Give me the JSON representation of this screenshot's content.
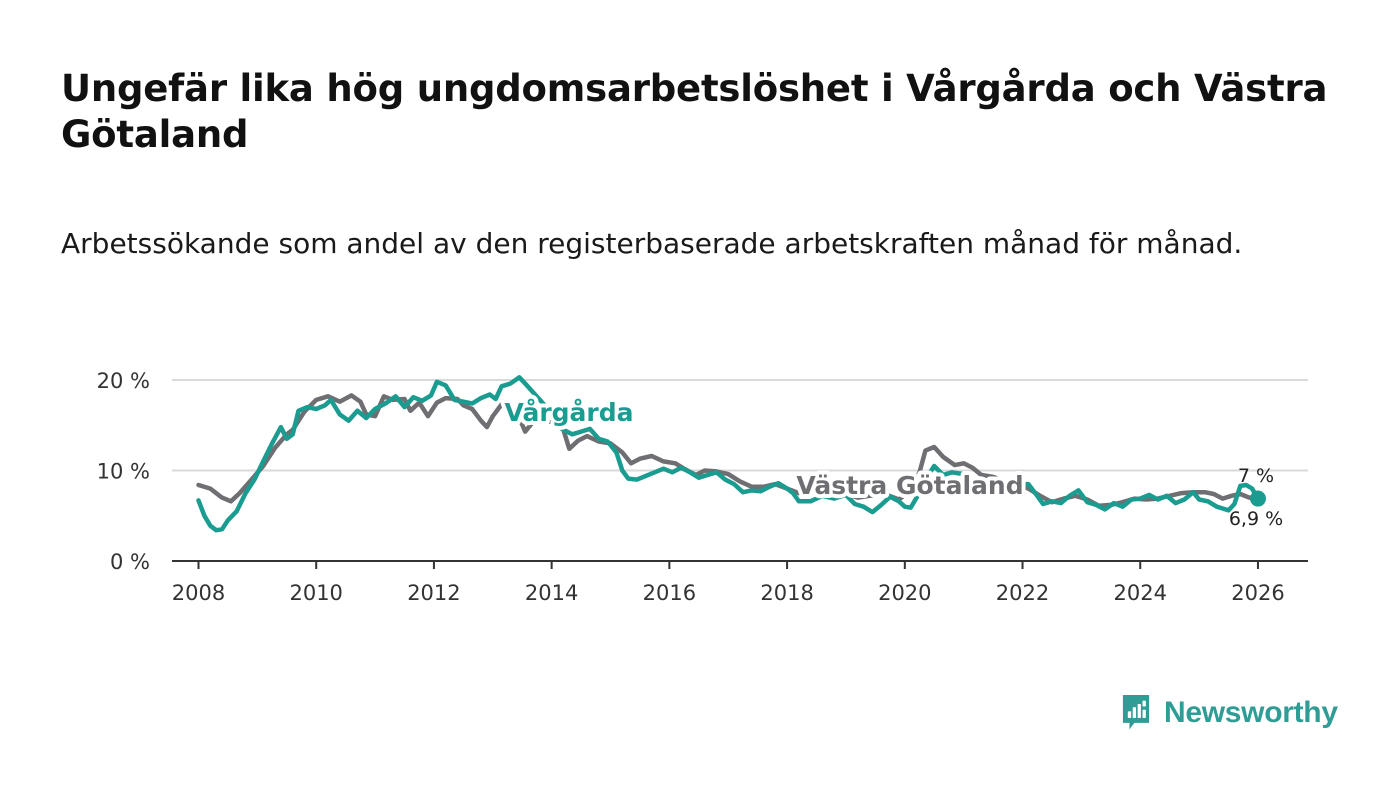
{
  "title": "Ungefär lika hög ungdomsarbetslöshet i Vårgårda och Västra Götaland",
  "subtitle": "Arbetssökande som andel av den registerbaserade arbetskraften månad för månad.",
  "brand": {
    "name": "Newsworthy",
    "color": "#2f9d96"
  },
  "chart_data": {
    "type": "line",
    "title": "Ungefär lika hög ungdomsarbetslöshet i Vårgårda och Västra Götaland",
    "xlabel": "",
    "ylabel": "",
    "xlim": [
      2007.55,
      2026.85
    ],
    "ylim": [
      0,
      20
    ],
    "x_ticks": [
      2008,
      2010,
      2012,
      2014,
      2016,
      2018,
      2020,
      2022,
      2024,
      2026
    ],
    "x_tick_labels": [
      "2008",
      "2010",
      "2012",
      "2014",
      "2016",
      "2018",
      "2020",
      "2022",
      "2024",
      "2026"
    ],
    "y_ticks": [
      0,
      10,
      20
    ],
    "y_tick_labels": [
      "0 %",
      "10 %",
      "20 %"
    ],
    "grid": true,
    "series": [
      {
        "name": "Västra Götaland",
        "label": "Västra Götaland",
        "color": "#6f6e72",
        "end_label": "7 %",
        "points": [
          [
            2008.0,
            8.4
          ],
          [
            2008.2,
            8.0
          ],
          [
            2008.4,
            7.0
          ],
          [
            2008.55,
            6.6
          ],
          [
            2008.7,
            7.5
          ],
          [
            2008.9,
            9.0
          ],
          [
            2009.1,
            10.5
          ],
          [
            2009.3,
            12.5
          ],
          [
            2009.5,
            14.0
          ],
          [
            2009.6,
            14.5
          ],
          [
            2009.8,
            16.5
          ],
          [
            2010.0,
            17.8
          ],
          [
            2010.2,
            18.2
          ],
          [
            2010.4,
            17.6
          ],
          [
            2010.6,
            18.3
          ],
          [
            2010.75,
            17.6
          ],
          [
            2010.85,
            16.2
          ],
          [
            2011.0,
            16.0
          ],
          [
            2011.15,
            18.2
          ],
          [
            2011.3,
            17.8
          ],
          [
            2011.5,
            17.9
          ],
          [
            2011.6,
            16.6
          ],
          [
            2011.75,
            17.5
          ],
          [
            2011.9,
            16.0
          ],
          [
            2012.05,
            17.5
          ],
          [
            2012.2,
            18.0
          ],
          [
            2012.4,
            17.9
          ],
          [
            2012.5,
            17.2
          ],
          [
            2012.65,
            16.8
          ],
          [
            2012.8,
            15.5
          ],
          [
            2012.9,
            14.8
          ],
          [
            2013.0,
            16.0
          ],
          [
            2013.15,
            17.3
          ],
          [
            2013.3,
            17.0
          ],
          [
            2013.45,
            15.8
          ],
          [
            2013.55,
            14.3
          ],
          [
            2013.7,
            15.5
          ],
          [
            2014.0,
            15.4
          ],
          [
            2014.2,
            14.5
          ],
          [
            2014.3,
            12.4
          ],
          [
            2014.45,
            13.3
          ],
          [
            2014.6,
            13.8
          ],
          [
            2014.8,
            13.2
          ],
          [
            2015.0,
            13.0
          ],
          [
            2015.2,
            12.0
          ],
          [
            2015.35,
            10.8
          ],
          [
            2015.5,
            11.3
          ],
          [
            2015.7,
            11.6
          ],
          [
            2015.9,
            11.0
          ],
          [
            2016.1,
            10.8
          ],
          [
            2016.25,
            10.2
          ],
          [
            2016.45,
            9.5
          ],
          [
            2016.6,
            10.0
          ],
          [
            2016.8,
            9.9
          ],
          [
            2017.0,
            9.6
          ],
          [
            2017.2,
            8.8
          ],
          [
            2017.4,
            8.2
          ],
          [
            2017.6,
            8.2
          ],
          [
            2017.8,
            8.5
          ],
          [
            2018.0,
            8.0
          ],
          [
            2018.2,
            7.5
          ],
          [
            2018.5,
            7.6
          ],
          [
            2018.8,
            7.3
          ],
          [
            2019.0,
            7.4
          ],
          [
            2019.2,
            7.0
          ],
          [
            2019.4,
            7.2
          ],
          [
            2019.7,
            7.3
          ],
          [
            2019.9,
            6.8
          ],
          [
            2020.1,
            7.8
          ],
          [
            2020.25,
            9.8
          ],
          [
            2020.35,
            12.2
          ],
          [
            2020.5,
            12.6
          ],
          [
            2020.65,
            11.5
          ],
          [
            2020.85,
            10.6
          ],
          [
            2021.0,
            10.8
          ],
          [
            2021.15,
            10.3
          ],
          [
            2021.3,
            9.5
          ],
          [
            2021.5,
            9.3
          ],
          [
            2021.7,
            8.8
          ],
          [
            2021.9,
            8.5
          ],
          [
            2022.1,
            8.0
          ],
          [
            2022.3,
            7.2
          ],
          [
            2022.5,
            6.5
          ],
          [
            2022.7,
            6.9
          ],
          [
            2022.9,
            7.2
          ],
          [
            2023.1,
            6.8
          ],
          [
            2023.3,
            6.1
          ],
          [
            2023.5,
            6.2
          ],
          [
            2023.7,
            6.5
          ],
          [
            2023.9,
            6.9
          ],
          [
            2024.1,
            6.8
          ],
          [
            2024.3,
            6.9
          ],
          [
            2024.5,
            7.2
          ],
          [
            2024.7,
            7.5
          ],
          [
            2024.9,
            7.6
          ],
          [
            2025.1,
            7.6
          ],
          [
            2025.25,
            7.4
          ],
          [
            2025.4,
            6.9
          ],
          [
            2025.55,
            7.2
          ],
          [
            2025.7,
            7.4
          ],
          [
            2025.85,
            7.0
          ],
          [
            2026.0,
            7.0
          ]
        ]
      },
      {
        "name": "Vårgårda",
        "label": "Vårgårda",
        "color": "#1a9c91",
        "end_label": "6,9 %",
        "points": [
          [
            2008.0,
            6.7
          ],
          [
            2008.1,
            5.0
          ],
          [
            2008.2,
            3.9
          ],
          [
            2008.3,
            3.4
          ],
          [
            2008.4,
            3.5
          ],
          [
            2008.5,
            4.5
          ],
          [
            2008.65,
            5.5
          ],
          [
            2008.8,
            7.5
          ],
          [
            2008.95,
            9.0
          ],
          [
            2009.1,
            11.0
          ],
          [
            2009.25,
            13.0
          ],
          [
            2009.4,
            14.8
          ],
          [
            2009.5,
            13.5
          ],
          [
            2009.6,
            14.0
          ],
          [
            2009.7,
            16.6
          ],
          [
            2009.85,
            17.0
          ],
          [
            2010.0,
            16.8
          ],
          [
            2010.15,
            17.2
          ],
          [
            2010.25,
            17.8
          ],
          [
            2010.4,
            16.2
          ],
          [
            2010.55,
            15.5
          ],
          [
            2010.7,
            16.6
          ],
          [
            2010.85,
            15.8
          ],
          [
            2011.0,
            16.8
          ],
          [
            2011.2,
            17.5
          ],
          [
            2011.35,
            18.2
          ],
          [
            2011.5,
            17.0
          ],
          [
            2011.65,
            18.1
          ],
          [
            2011.8,
            17.7
          ],
          [
            2011.95,
            18.3
          ],
          [
            2012.05,
            19.8
          ],
          [
            2012.2,
            19.4
          ],
          [
            2012.35,
            17.8
          ],
          [
            2012.5,
            17.6
          ],
          [
            2012.65,
            17.4
          ],
          [
            2012.8,
            18.0
          ],
          [
            2012.95,
            18.4
          ],
          [
            2013.05,
            17.9
          ],
          [
            2013.15,
            19.3
          ],
          [
            2013.3,
            19.6
          ],
          [
            2013.45,
            20.3
          ],
          [
            2013.55,
            19.6
          ],
          [
            2013.65,
            18.9
          ],
          [
            2014.05,
            16.0
          ],
          [
            2014.2,
            14.5
          ],
          [
            2014.35,
            14.0
          ],
          [
            2014.5,
            14.3
          ],
          [
            2014.65,
            14.6
          ],
          [
            2014.8,
            13.5
          ],
          [
            2014.95,
            13.2
          ],
          [
            2015.1,
            12.0
          ],
          [
            2015.2,
            10.0
          ],
          [
            2015.3,
            9.1
          ],
          [
            2015.45,
            9.0
          ],
          [
            2015.6,
            9.4
          ],
          [
            2015.75,
            9.8
          ],
          [
            2015.9,
            10.2
          ],
          [
            2016.05,
            9.8
          ],
          [
            2016.2,
            10.3
          ],
          [
            2016.35,
            9.8
          ],
          [
            2016.5,
            9.2
          ],
          [
            2016.65,
            9.5
          ],
          [
            2016.8,
            9.8
          ],
          [
            2016.95,
            9.0
          ],
          [
            2017.1,
            8.5
          ],
          [
            2017.25,
            7.6
          ],
          [
            2017.4,
            7.8
          ],
          [
            2017.55,
            7.7
          ],
          [
            2017.7,
            8.2
          ],
          [
            2017.85,
            8.6
          ],
          [
            2018.0,
            8.0
          ],
          [
            2018.1,
            7.5
          ],
          [
            2018.2,
            6.6
          ],
          [
            2018.4,
            6.6
          ],
          [
            2018.6,
            7.2
          ],
          [
            2018.8,
            6.9
          ],
          [
            2019.0,
            7.3
          ],
          [
            2019.15,
            6.3
          ],
          [
            2019.3,
            6.0
          ],
          [
            2019.45,
            5.4
          ],
          [
            2019.6,
            6.2
          ],
          [
            2019.75,
            7.1
          ],
          [
            2019.9,
            6.6
          ],
          [
            2020.0,
            6.0
          ],
          [
            2020.1,
            5.9
          ],
          [
            2020.2,
            7.0
          ],
          [
            2020.35,
            9.0
          ],
          [
            2020.5,
            10.5
          ],
          [
            2020.65,
            9.5
          ],
          [
            2020.8,
            9.8
          ],
          [
            2021.0,
            9.6
          ],
          [
            2021.2,
            8.5
          ],
          [
            2021.35,
            8.3
          ],
          [
            2021.5,
            7.5
          ],
          [
            2021.7,
            8.0
          ],
          [
            2021.9,
            8.5
          ],
          [
            2022.1,
            8.5
          ],
          [
            2022.25,
            7.2
          ],
          [
            2022.35,
            6.3
          ],
          [
            2022.5,
            6.6
          ],
          [
            2022.65,
            6.4
          ],
          [
            2022.8,
            7.2
          ],
          [
            2022.95,
            7.8
          ],
          [
            2023.1,
            6.5
          ],
          [
            2023.25,
            6.2
          ],
          [
            2023.4,
            5.7
          ],
          [
            2023.55,
            6.4
          ],
          [
            2023.7,
            6.0
          ],
          [
            2023.85,
            6.8
          ],
          [
            2024.0,
            6.9
          ],
          [
            2024.15,
            7.3
          ],
          [
            2024.3,
            6.8
          ],
          [
            2024.45,
            7.2
          ],
          [
            2024.6,
            6.4
          ],
          [
            2024.75,
            6.8
          ],
          [
            2024.9,
            7.6
          ],
          [
            2025.0,
            6.8
          ],
          [
            2025.15,
            6.6
          ],
          [
            2025.3,
            6.0
          ],
          [
            2025.4,
            5.8
          ],
          [
            2025.5,
            5.6
          ],
          [
            2025.6,
            6.3
          ],
          [
            2025.7,
            8.3
          ],
          [
            2025.8,
            8.4
          ],
          [
            2025.9,
            8.0
          ],
          [
            2026.0,
            6.9
          ]
        ]
      }
    ]
  }
}
